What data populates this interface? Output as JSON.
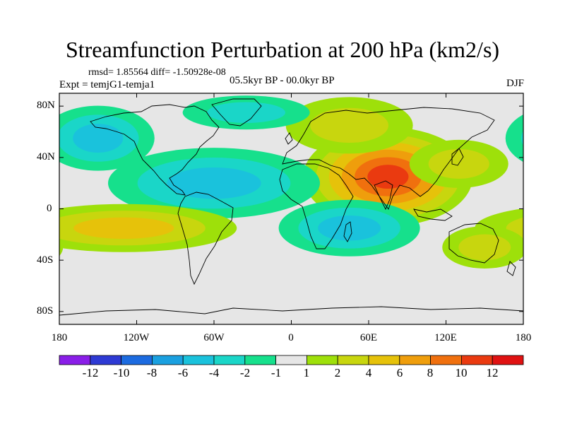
{
  "title": "Streamfunction Perturbation at 200 hPa (km2/s)",
  "stats": "rmsd= 1.85564 diff= -1.50928e-08",
  "experiment": "Expt = temjG1-temja1",
  "period": "05.5kyr BP - 00.0kyr BP",
  "season": "DJF",
  "lat_labels": [
    "80N",
    "40N",
    "0",
    "40S",
    "80S"
  ],
  "lon_labels": [
    "180",
    "120W",
    "60W",
    "0",
    "60E",
    "120E",
    "180"
  ],
  "colorbar": {
    "labels": [
      "-12",
      "-10",
      "-8",
      "-6",
      "-4",
      "-2",
      "-1",
      "1",
      "2",
      "4",
      "6",
      "8",
      "10",
      "12"
    ],
    "colors": [
      "#8a1ee8",
      "#2e3ad4",
      "#1c6be0",
      "#1aa0e0",
      "#1ac2dc",
      "#1ad6c8",
      "#16e08c",
      "#e6e6e6",
      "#9ee00a",
      "#c8d60e",
      "#e6c20a",
      "#ef9e0c",
      "#f0700e",
      "#ea3a10",
      "#e01212"
    ]
  },
  "chart_data": {
    "type": "contour-map",
    "variable": "Streamfunction Perturbation at 200 hPa",
    "units": "km2/s",
    "lon_range": [
      -180,
      180
    ],
    "lat_range": [
      -90,
      90
    ],
    "levels": [
      -12,
      -10,
      -8,
      -6,
      -4,
      -2,
      -1,
      1,
      2,
      4,
      6,
      8,
      10,
      12
    ],
    "anomalies": [
      {
        "name": "south-asia-max",
        "lon": 75,
        "lat": 25,
        "approx_value": 10
      },
      {
        "name": "east-asia-pacific-pos",
        "lon": 130,
        "lat": 35,
        "approx_value": 2
      },
      {
        "name": "europe-pos",
        "lon": 45,
        "lat": 65,
        "approx_value": 2
      },
      {
        "name": "north-pacific-neg",
        "lon": -150,
        "lat": 55,
        "approx_value": -4
      },
      {
        "name": "north-atlantic-neg",
        "lon": -35,
        "lat": 75,
        "approx_value": -2
      },
      {
        "name": "tropical-atlantic-neg",
        "lon": -60,
        "lat": 20,
        "approx_value": -4
      },
      {
        "name": "south-pacific-pos",
        "lon": -130,
        "lat": -15,
        "approx_value": 4
      },
      {
        "name": "indian-ocean-neg",
        "lon": 45,
        "lat": -15,
        "approx_value": -4
      },
      {
        "name": "australia-pos",
        "lon": 150,
        "lat": -30,
        "approx_value": 2
      }
    ]
  }
}
